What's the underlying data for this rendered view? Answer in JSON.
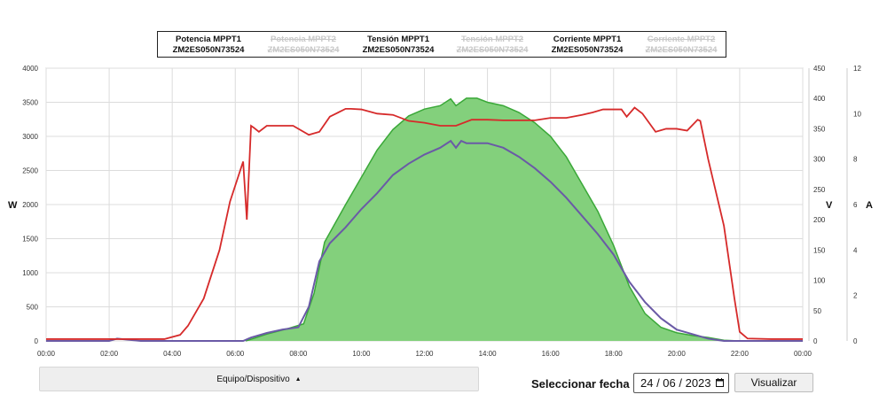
{
  "legend": [
    {
      "name": "Potencia MPPT1",
      "device": "ZM2ES050N73524",
      "hidden": false
    },
    {
      "name": "Potencia MPPT2",
      "device": "ZM2ES050N73524",
      "hidden": true
    },
    {
      "name": "Tensión MPPT1",
      "device": "ZM2ES050N73524",
      "hidden": false
    },
    {
      "name": "Tensión MPPT2",
      "device": "ZM2ES050N73524",
      "hidden": true
    },
    {
      "name": "Corriente MPPT1",
      "device": "ZM2ES050N73524",
      "hidden": false
    },
    {
      "name": "Corriente MPPT2",
      "device": "ZM2ES050N73524",
      "hidden": true
    }
  ],
  "controls": {
    "device_label": "Equipo/Dispositivo",
    "date_label": "Seleccionar fecha",
    "date_value": "24 / 06 / 2023",
    "show_button": "Visualizar"
  },
  "colors": {
    "power_fill": "#83d07c",
    "power_line": "#3aa838",
    "voltage_line": "#d62a2a",
    "current_line": "#6a5aa6"
  },
  "chart_data": {
    "type": "line",
    "x_ticks": [
      "00:00",
      "02:00",
      "04:00",
      "06:00",
      "08:00",
      "10:00",
      "12:00",
      "14:00",
      "16:00",
      "18:00",
      "20:00",
      "22:00",
      "00:00"
    ],
    "xlim_hours": [
      0,
      24
    ],
    "axes": {
      "W": {
        "label": "W",
        "ylim": [
          0,
          4000
        ],
        "ticks": [
          0,
          500,
          1000,
          1500,
          2000,
          2500,
          3000,
          3500,
          4000
        ]
      },
      "V": {
        "label": "V",
        "ylim": [
          0,
          450
        ],
        "ticks": [
          0,
          50,
          100,
          150,
          200,
          250,
          300,
          350,
          400,
          450
        ]
      },
      "A": {
        "label": "A",
        "ylim": [
          0,
          12
        ],
        "ticks": [
          0,
          2,
          4,
          6,
          8,
          10,
          12
        ]
      }
    },
    "grid": true,
    "series": [
      {
        "name": "Potencia MPPT1",
        "axis": "W",
        "type": "area",
        "x": [
          "06:20",
          "07:00",
          "07:40",
          "08:10",
          "08:30",
          "08:50",
          "09:30",
          "10:00",
          "10:30",
          "11:00",
          "11:30",
          "12:00",
          "12:30",
          "12:50",
          "13:00",
          "13:20",
          "13:40",
          "14:00",
          "14:30",
          "15:00",
          "15:30",
          "16:00",
          "16:30",
          "17:00",
          "17:30",
          "18:00",
          "18:30",
          "19:00",
          "19:30",
          "20:00",
          "20:30",
          "21:00",
          "21:30",
          "22:00"
        ],
        "y": [
          0,
          100,
          180,
          250,
          700,
          1450,
          2000,
          2400,
          2800,
          3100,
          3300,
          3400,
          3450,
          3550,
          3450,
          3560,
          3560,
          3500,
          3450,
          3350,
          3200,
          3000,
          2700,
          2300,
          1900,
          1400,
          800,
          400,
          200,
          120,
          80,
          50,
          10,
          0
        ]
      },
      {
        "name": "Tensión MPPT1",
        "axis": "V",
        "x": [
          "00:00",
          "03:45",
          "04:15",
          "04:30",
          "05:00",
          "05:30",
          "05:50",
          "06:15",
          "06:22",
          "06:30",
          "06:35",
          "06:45",
          "07:00",
          "07:30",
          "07:50",
          "08:20",
          "08:40",
          "09:00",
          "09:30",
          "09:40",
          "10:00",
          "10:30",
          "11:00",
          "11:30",
          "12:00",
          "12:30",
          "13:00",
          "13:30",
          "14:00",
          "14:30",
          "15:00",
          "15:30",
          "16:00",
          "16:30",
          "17:00",
          "17:20",
          "17:40",
          "18:00",
          "18:15",
          "18:25",
          "18:40",
          "18:55",
          "19:20",
          "19:40",
          "20:00",
          "20:20",
          "20:40",
          "20:45",
          "21:00",
          "21:30",
          "21:50",
          "22:00",
          "22:15",
          "23:00",
          "24:00"
        ],
        "y": [
          3,
          3,
          10,
          25,
          70,
          150,
          230,
          296,
          200,
          355,
          352,
          345,
          355,
          355,
          355,
          340,
          345,
          370,
          383,
          383,
          382,
          375,
          373,
          363,
          360,
          355,
          355,
          365,
          365,
          364,
          364,
          364,
          368,
          368,
          373,
          377,
          382,
          382,
          382,
          370,
          385,
          375,
          345,
          350,
          350,
          347,
          365,
          363,
          300,
          190,
          70,
          15,
          4,
          3,
          3
        ]
      },
      {
        "name": "Corriente MPPT1",
        "axis": "A",
        "x": [
          "00:00",
          "02:00",
          "02:15",
          "03:00",
          "04:00",
          "06:15",
          "06:30",
          "07:00",
          "07:30",
          "08:00",
          "08:20",
          "08:40",
          "09:00",
          "09:30",
          "10:00",
          "10:30",
          "11:00",
          "11:30",
          "12:00",
          "12:30",
          "12:50",
          "13:00",
          "13:10",
          "13:20",
          "13:40",
          "14:00",
          "14:30",
          "15:00",
          "15:30",
          "16:00",
          "16:30",
          "17:00",
          "17:30",
          "18:00",
          "18:30",
          "19:00",
          "19:30",
          "20:00",
          "20:30",
          "21:00",
          "21:30",
          "22:00",
          "24:00"
        ],
        "y": [
          0,
          0,
          0.1,
          0,
          0,
          0,
          0.15,
          0.35,
          0.5,
          0.6,
          1.5,
          3.5,
          4.3,
          5.0,
          5.8,
          6.5,
          7.3,
          7.8,
          8.2,
          8.5,
          8.8,
          8.5,
          8.8,
          8.7,
          8.7,
          8.7,
          8.5,
          8.1,
          7.6,
          7.0,
          6.3,
          5.5,
          4.7,
          3.8,
          2.6,
          1.7,
          1.0,
          0.5,
          0.3,
          0.1,
          0,
          0,
          0
        ]
      }
    ]
  }
}
